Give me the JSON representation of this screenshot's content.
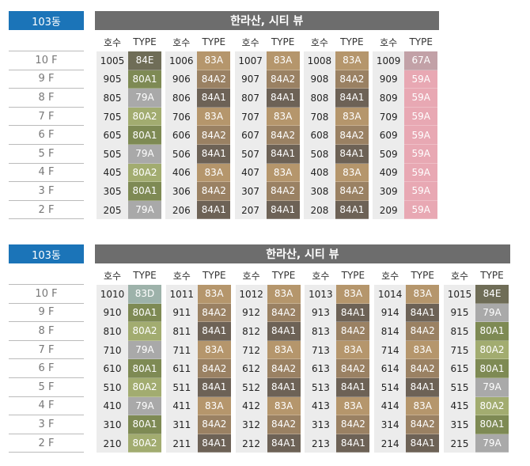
{
  "sections": [
    {
      "badge": "103동",
      "title": "한라산, 시티 뷰",
      "floors": [
        "10 F",
        "9 F",
        "8 F",
        "7 F",
        "6 F",
        "5 F",
        "4 F",
        "3 F",
        "2 F"
      ],
      "groups": [
        {
          "unit_header": "호수",
          "type_header": "TYPE",
          "units": [
            "1005",
            "905",
            "805",
            "705",
            "605",
            "505",
            "405",
            "305",
            "205"
          ],
          "types": [
            "84E",
            "80A1",
            "79A",
            "80A2",
            "80A1",
            "79A",
            "80A2",
            "80A1",
            "79A"
          ]
        },
        {
          "unit_header": "호수",
          "type_header": "TYPE",
          "units": [
            "1006",
            "906",
            "806",
            "706",
            "606",
            "506",
            "406",
            "306",
            "206"
          ],
          "types": [
            "83A",
            "84A2",
            "84A1",
            "83A",
            "84A2",
            "84A1",
            "83A",
            "84A2",
            "84A1"
          ]
        },
        {
          "unit_header": "호수",
          "type_header": "TYPE",
          "units": [
            "1007",
            "907",
            "807",
            "707",
            "607",
            "507",
            "407",
            "307",
            "207"
          ],
          "types": [
            "83A",
            "84A2",
            "84A1",
            "83A",
            "84A2",
            "84A1",
            "83A",
            "84A2",
            "84A1"
          ]
        },
        {
          "unit_header": "호수",
          "type_header": "TYPE",
          "units": [
            "1008",
            "908",
            "808",
            "708",
            "608",
            "508",
            "408",
            "308",
            "208"
          ],
          "types": [
            "83A",
            "84A2",
            "84A1",
            "83A",
            "84A2",
            "84A1",
            "83A",
            "84A2",
            "84A1"
          ]
        },
        {
          "unit_header": "호수",
          "type_header": "TYPE",
          "units": [
            "1009",
            "909",
            "809",
            "709",
            "609",
            "509",
            "409",
            "309",
            "209"
          ],
          "types": [
            "67A",
            "59A",
            "59A",
            "59A",
            "59A",
            "59A",
            "59A",
            "59A",
            "59A"
          ]
        }
      ]
    },
    {
      "badge": "103동",
      "title": "한라산, 시티 뷰",
      "floors": [
        "10 F",
        "9 F",
        "8 F",
        "7 F",
        "6 F",
        "5 F",
        "4 F",
        "3 F",
        "2 F"
      ],
      "groups": [
        {
          "unit_header": "호수",
          "type_header": "TYPE",
          "units": [
            "1010",
            "910",
            "810",
            "710",
            "610",
            "510",
            "410",
            "310",
            "210"
          ],
          "types": [
            "83D",
            "80A1",
            "80A2",
            "79A",
            "80A1",
            "80A2",
            "79A",
            "80A1",
            "80A2"
          ]
        },
        {
          "unit_header": "호수",
          "type_header": "TYPE",
          "units": [
            "1011",
            "911",
            "811",
            "711",
            "611",
            "511",
            "411",
            "311",
            "211"
          ],
          "types": [
            "83A",
            "84A2",
            "84A1",
            "83A",
            "84A2",
            "84A1",
            "83A",
            "84A2",
            "84A1"
          ]
        },
        {
          "unit_header": "호수",
          "type_header": "TYPE",
          "units": [
            "1012",
            "912",
            "812",
            "712",
            "612",
            "512",
            "412",
            "312",
            "212"
          ],
          "types": [
            "83A",
            "84A2",
            "84A1",
            "83A",
            "84A2",
            "84A1",
            "83A",
            "84A2",
            "84A1"
          ]
        },
        {
          "unit_header": "호수",
          "type_header": "TYPE",
          "units": [
            "1013",
            "913",
            "813",
            "713",
            "613",
            "513",
            "413",
            "313",
            "213"
          ],
          "types": [
            "83A",
            "84A1",
            "84A2",
            "83A",
            "84A2",
            "84A1",
            "83A",
            "84A2",
            "84A1"
          ]
        },
        {
          "unit_header": "호수",
          "type_header": "TYPE",
          "units": [
            "1014",
            "914",
            "814",
            "714",
            "614",
            "514",
            "414",
            "314",
            "214"
          ],
          "types": [
            "83A",
            "84A1",
            "84A2",
            "83A",
            "84A2",
            "84A1",
            "83A",
            "84A2",
            "84A1"
          ]
        },
        {
          "unit_header": "호수",
          "type_header": "TYPE",
          "units": [
            "1015",
            "915",
            "815",
            "715",
            "615",
            "515",
            "415",
            "315",
            "215"
          ],
          "types": [
            "84E",
            "79A",
            "80A1",
            "80A2",
            "80A1",
            "79A",
            "80A2",
            "80A1",
            "79A"
          ]
        }
      ]
    }
  ],
  "colors": {
    "84E": "#6f6d57",
    "80A1": "#7e8a54",
    "79A": "#a9a9a9",
    "80A2": "#a2ac70",
    "83A": "#b5966c",
    "84A2": "#9a8163",
    "84A1": "#6d6256",
    "67A": "#c2a1a7",
    "59A": "#e8a8b3",
    "83D": "#9db2aa"
  }
}
